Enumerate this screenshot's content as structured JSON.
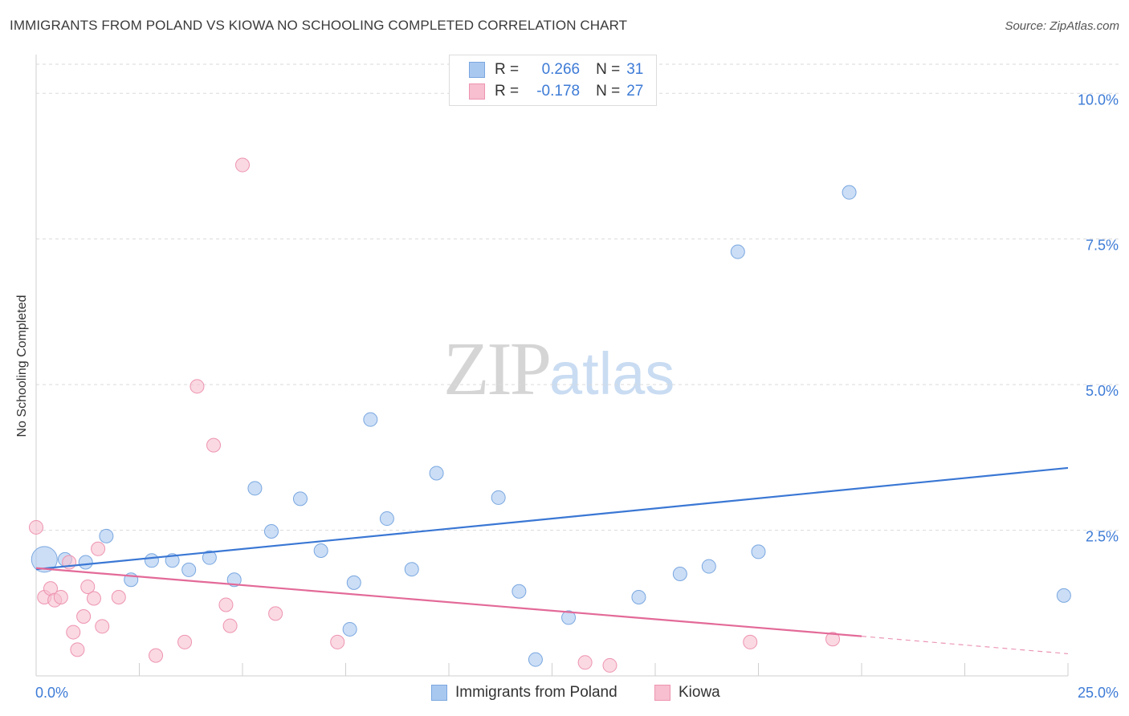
{
  "title": "IMMIGRANTS FROM POLAND VS KIOWA NO SCHOOLING COMPLETED CORRELATION CHART",
  "source": "Source: ZipAtlas.com",
  "watermark": {
    "zip": "ZIP",
    "atlas": "atlas"
  },
  "legend_top": [
    {
      "r_label": "R =",
      "r_value": "0.266",
      "n_label": "N =",
      "n_value": "31",
      "color": "#a9c8f0",
      "border": "#7aa7e0"
    },
    {
      "r_label": "R =",
      "r_value": "-0.178",
      "n_label": "N =",
      "n_value": "27",
      "color": "#f7bfd0",
      "border": "#ee94b0"
    }
  ],
  "chart_data": {
    "type": "scatter",
    "title": "IMMIGRANTS FROM POLAND VS KIOWA NO SCHOOLING COMPLETED CORRELATION CHART",
    "xlabel": "",
    "ylabel": "No Schooling Completed",
    "xlim": [
      0,
      25
    ],
    "ylim": [
      0,
      10.5
    ],
    "x_tick_labels": [
      "0.0%",
      "25.0%"
    ],
    "y_ticks": [
      2.5,
      5.0,
      7.5,
      10.0
    ],
    "y_tick_labels": [
      "2.5%",
      "5.0%",
      "7.5%",
      "10.0%"
    ],
    "grid": true,
    "legend_position": "top-center",
    "series": [
      {
        "name": "Immigrants from Poland",
        "color": "#a9c8f0",
        "stroke": "#7aa7e0",
        "trend_color": "#3a77d4",
        "trend": {
          "x": [
            0,
            25
          ],
          "y": [
            1.83,
            3.57
          ]
        },
        "points": [
          [
            0.2,
            2.0,
            3
          ],
          [
            0.7,
            2.0,
            1
          ],
          [
            1.2,
            1.95,
            1
          ],
          [
            1.7,
            2.4,
            1
          ],
          [
            2.3,
            1.65,
            1
          ],
          [
            2.8,
            1.98,
            1
          ],
          [
            3.3,
            1.98,
            1
          ],
          [
            3.7,
            1.82,
            1
          ],
          [
            4.2,
            2.03,
            1
          ],
          [
            4.8,
            1.65,
            1
          ],
          [
            5.3,
            3.22,
            1
          ],
          [
            5.7,
            2.48,
            1
          ],
          [
            6.4,
            3.04,
            1
          ],
          [
            6.9,
            2.15,
            1
          ],
          [
            7.6,
            0.8,
            1
          ],
          [
            7.7,
            1.6,
            1
          ],
          [
            8.1,
            4.4,
            1
          ],
          [
            8.5,
            2.7,
            1
          ],
          [
            9.1,
            1.83,
            1
          ],
          [
            9.7,
            3.48,
            1
          ],
          [
            11.2,
            3.06,
            1
          ],
          [
            11.7,
            1.45,
            1
          ],
          [
            12.1,
            0.28,
            1
          ],
          [
            12.9,
            1.0,
            1
          ],
          [
            14.6,
            1.35,
            1
          ],
          [
            15.6,
            1.75,
            1
          ],
          [
            16.3,
            1.88,
            1
          ],
          [
            17.0,
            7.28,
            1
          ],
          [
            17.5,
            2.13,
            1
          ],
          [
            19.7,
            8.3,
            1
          ],
          [
            24.9,
            1.38,
            1
          ]
        ]
      },
      {
        "name": "Kiowa",
        "color": "#f7bfd0",
        "stroke": "#ee94b0",
        "trend_color": "#e36a98",
        "trend": {
          "x": [
            0,
            20
          ],
          "y": [
            1.85,
            0.68
          ]
        },
        "trend_dashed": {
          "x": [
            20,
            25
          ],
          "y": [
            0.68,
            0.38
          ]
        },
        "points": [
          [
            0.0,
            2.55,
            1
          ],
          [
            0.2,
            1.35,
            1
          ],
          [
            0.35,
            1.5,
            1
          ],
          [
            0.45,
            1.3,
            1
          ],
          [
            0.6,
            1.35,
            1
          ],
          [
            0.8,
            1.95,
            1
          ],
          [
            0.9,
            0.75,
            1
          ],
          [
            1.0,
            0.45,
            1
          ],
          [
            1.15,
            1.02,
            1
          ],
          [
            1.25,
            1.53,
            1
          ],
          [
            1.4,
            1.33,
            1
          ],
          [
            1.5,
            2.18,
            1
          ],
          [
            1.6,
            0.85,
            1
          ],
          [
            2.0,
            1.35,
            1
          ],
          [
            2.9,
            0.35,
            1
          ],
          [
            3.6,
            0.58,
            1
          ],
          [
            3.9,
            4.97,
            1
          ],
          [
            4.3,
            3.96,
            1
          ],
          [
            4.6,
            1.22,
            1
          ],
          [
            4.7,
            0.86,
            1
          ],
          [
            5.0,
            8.77,
            1
          ],
          [
            5.8,
            1.07,
            1
          ],
          [
            7.3,
            0.58,
            1
          ],
          [
            13.3,
            0.23,
            1
          ],
          [
            13.9,
            0.18,
            1
          ],
          [
            17.3,
            0.58,
            1
          ],
          [
            19.3,
            0.63,
            1
          ]
        ]
      }
    ]
  }
}
